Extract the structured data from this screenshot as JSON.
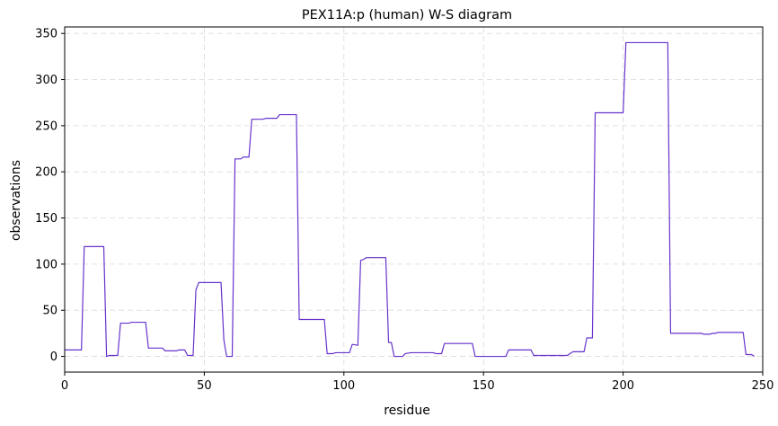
{
  "chart_data": {
    "type": "line",
    "title": "PEX11A:p (human) W-S diagram",
    "xlabel": "residue",
    "ylabel": "observations",
    "xlim": [
      0,
      250
    ],
    "ylim": [
      -17,
      357
    ],
    "xticks": [
      0,
      50,
      100,
      150,
      200,
      250
    ],
    "yticks": [
      0,
      50,
      100,
      150,
      200,
      250,
      300,
      350
    ],
    "grid": true,
    "line_color": "#6633cc",
    "series": [
      {
        "name": "",
        "points": [
          [
            0,
            7
          ],
          [
            6,
            7
          ],
          [
            7,
            119
          ],
          [
            14,
            119
          ],
          [
            15,
            0
          ],
          [
            16,
            1
          ],
          [
            19,
            1
          ],
          [
            20,
            36
          ],
          [
            23,
            36
          ],
          [
            24,
            37
          ],
          [
            29,
            37
          ],
          [
            30,
            9
          ],
          [
            35,
            9
          ],
          [
            36,
            6
          ],
          [
            40,
            6
          ],
          [
            41,
            7
          ],
          [
            43,
            7
          ],
          [
            44,
            1
          ],
          [
            46,
            1
          ],
          [
            47,
            72
          ],
          [
            48,
            80
          ],
          [
            56,
            80
          ],
          [
            57,
            18
          ],
          [
            58,
            0
          ],
          [
            60,
            0
          ],
          [
            61,
            214
          ],
          [
            63,
            214
          ],
          [
            64,
            216
          ],
          [
            66,
            216
          ],
          [
            67,
            257
          ],
          [
            71,
            257
          ],
          [
            72,
            258
          ],
          [
            76,
            258
          ],
          [
            77,
            262
          ],
          [
            83,
            262
          ],
          [
            84,
            40
          ],
          [
            93,
            40
          ],
          [
            94,
            3
          ],
          [
            96,
            3
          ],
          [
            97,
            4
          ],
          [
            102,
            4
          ],
          [
            103,
            13
          ],
          [
            105,
            12
          ],
          [
            106,
            104
          ],
          [
            107,
            105
          ],
          [
            108,
            107
          ],
          [
            115,
            107
          ],
          [
            116,
            15
          ],
          [
            117,
            15
          ],
          [
            118,
            0
          ],
          [
            121,
            0
          ],
          [
            122,
            3
          ],
          [
            124,
            4
          ],
          [
            132,
            4
          ],
          [
            133,
            3
          ],
          [
            135,
            3
          ],
          [
            136,
            14
          ],
          [
            146,
            14
          ],
          [
            147,
            0
          ],
          [
            158,
            0
          ],
          [
            159,
            7
          ],
          [
            167,
            7
          ],
          [
            168,
            1
          ],
          [
            180,
            1
          ],
          [
            182,
            5
          ],
          [
            186,
            5
          ],
          [
            187,
            20
          ],
          [
            189,
            20
          ],
          [
            190,
            264
          ],
          [
            200,
            264
          ],
          [
            201,
            340
          ],
          [
            216,
            340
          ],
          [
            217,
            25
          ],
          [
            228,
            25
          ],
          [
            229,
            24
          ],
          [
            231,
            24
          ],
          [
            232,
            25
          ],
          [
            233,
            25
          ],
          [
            234,
            26
          ],
          [
            243,
            26
          ],
          [
            244,
            2
          ],
          [
            246,
            2
          ],
          [
            247,
            0
          ]
        ]
      }
    ]
  }
}
